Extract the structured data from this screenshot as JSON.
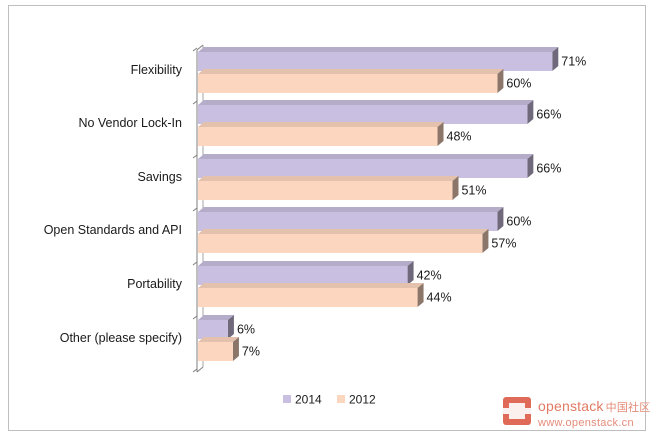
{
  "chart_data": {
    "type": "bar",
    "orientation": "horizontal",
    "style": "3d",
    "categories": [
      "Flexibility",
      "No Vendor Lock-In",
      "Savings",
      "Open Standards and API",
      "Portability",
      "Other (please specify)"
    ],
    "series": [
      {
        "name": "2014",
        "values": [
          71,
          66,
          66,
          60,
          42,
          6
        ],
        "labels": [
          "71%",
          "66%",
          "66%",
          "60%",
          "42%",
          "6%"
        ],
        "color": "#c9bfe0"
      },
      {
        "name": "2012",
        "values": [
          60,
          48,
          51,
          57,
          44,
          7
        ],
        "labels": [
          "60%",
          "48%",
          "51%",
          "57%",
          "44%",
          "7%"
        ],
        "color": "#fcd6bf"
      }
    ],
    "xlim": [
      0,
      80
    ],
    "grid": false,
    "legend": "bottom"
  },
  "watermark": {
    "brand": "openstack",
    "brand_cn": "中国社区",
    "url": "www.openstack.cn"
  }
}
